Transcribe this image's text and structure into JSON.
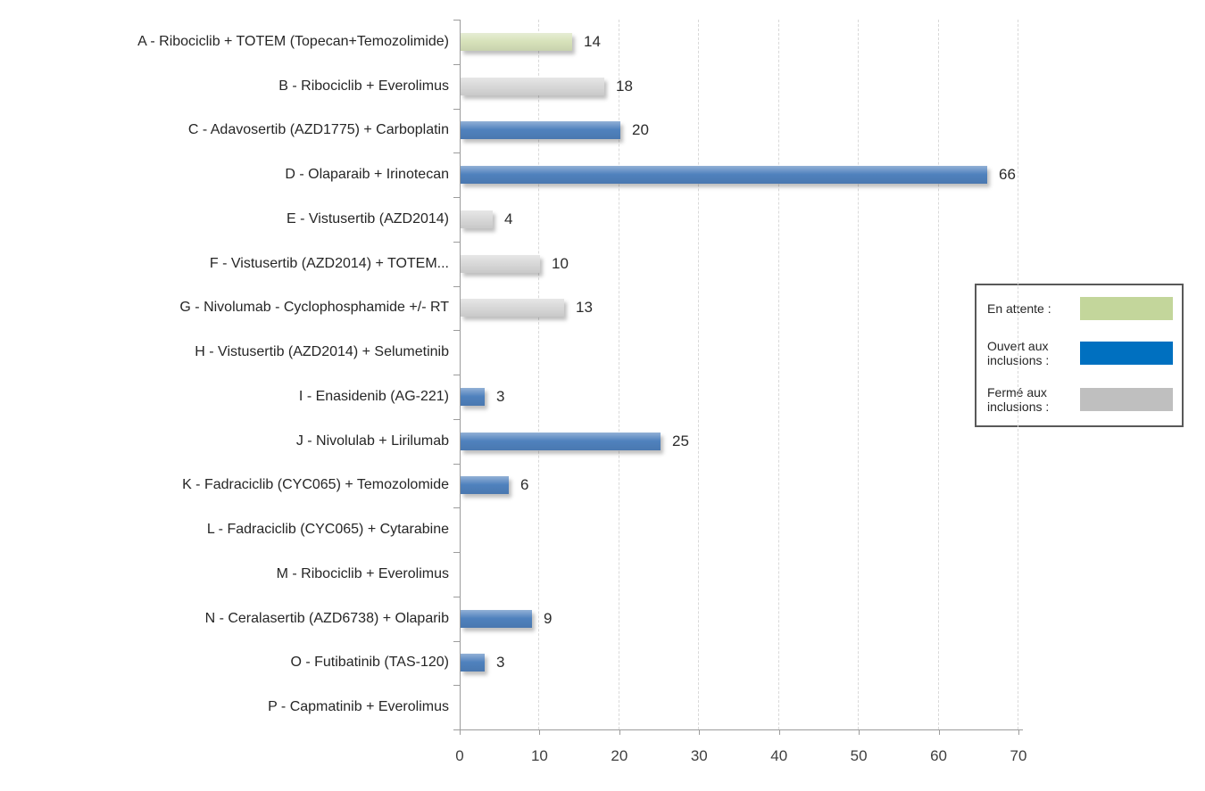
{
  "chart_data": {
    "type": "bar",
    "orientation": "horizontal",
    "title": "",
    "xlabel": "",
    "ylabel": "",
    "xlim": [
      0,
      70
    ],
    "x_ticks": [
      0,
      10,
      20,
      30,
      40,
      50,
      60,
      70
    ],
    "grid": "vertical-dashed",
    "legend_position": "right",
    "rows": [
      {
        "label": "A - Ribociclib + TOTEM (Topecan+Temozolimide)",
        "value": 14,
        "status": "en_attente"
      },
      {
        "label": "B - Ribociclib + Everolimus",
        "value": 18,
        "status": "ferme"
      },
      {
        "label": "C - Adavosertib (AZD1775) + Carboplatin",
        "value": 20,
        "status": "ouvert"
      },
      {
        "label": "D - Olaparaib + Irinotecan",
        "value": 66,
        "status": "ouvert"
      },
      {
        "label": "E - Vistusertib (AZD2014)",
        "value": 4,
        "status": "ferme"
      },
      {
        "label": "F - Vistusertib (AZD2014) + TOTEM...",
        "value": 10,
        "status": "ferme"
      },
      {
        "label": "G - Nivolumab - Cyclophosphamide +/- RT",
        "value": 13,
        "status": "ferme"
      },
      {
        "label": "H - Vistusertib (AZD2014) + Selumetinib",
        "value": 0,
        "status": "none"
      },
      {
        "label": "I - Enasidenib (AG-221)",
        "value": 3,
        "status": "ouvert"
      },
      {
        "label": "J - Nivolulab + Lirilumab",
        "value": 25,
        "status": "ouvert"
      },
      {
        "label": "K - Fadraciclib (CYC065) + Temozolomide",
        "value": 6,
        "status": "ouvert"
      },
      {
        "label": "L - Fadraciclib (CYC065) + Cytarabine",
        "value": 0,
        "status": "none"
      },
      {
        "label": "M - Ribociclib + Everolimus",
        "value": 0,
        "status": "none"
      },
      {
        "label": "N - Ceralasertib (AZD6738) + Olaparib",
        "value": 9,
        "status": "ouvert"
      },
      {
        "label": "O - Futibatinib (TAS-120)",
        "value": 3,
        "status": "ouvert"
      },
      {
        "label": "P - Capmatinib + Everolimus",
        "value": 0,
        "status": "none"
      }
    ],
    "colors": {
      "bar": {
        "en_attente": "#D7E2BA",
        "ouvert": "#4F81BD",
        "ferme": "#D8D8D8"
      },
      "legend": {
        "en_attente": "#C3D69B",
        "ouvert": "#0070C0",
        "ferme": "#BFBFBF"
      }
    }
  },
  "legend": {
    "items": [
      {
        "label": "En attente :",
        "key": "en_attente"
      },
      {
        "label": "Ouvert aux\ninclusions :",
        "key": "ouvert"
      },
      {
        "label": "Fermé aux\ninclusions :",
        "key": "ferme"
      }
    ]
  }
}
